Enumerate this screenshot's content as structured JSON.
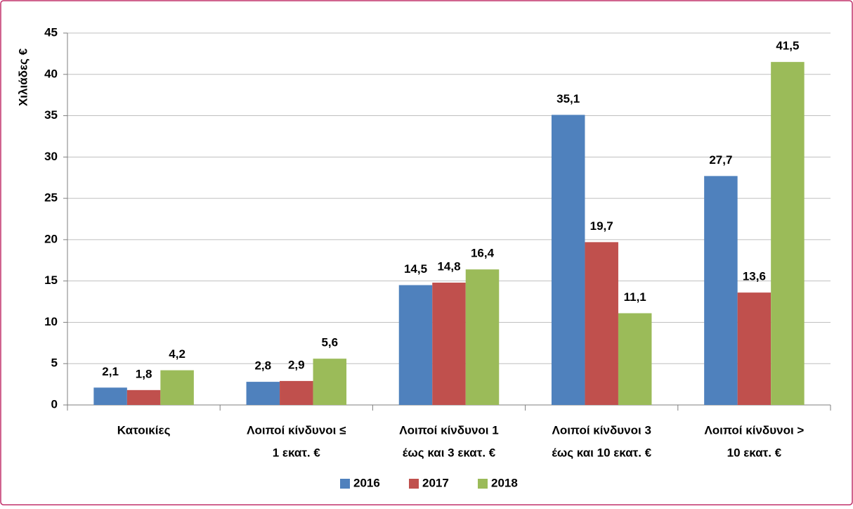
{
  "chart_data": {
    "type": "bar",
    "y_label": "Χιλιάδες €",
    "categories": [
      [
        "Κατοικίες"
      ],
      [
        "Λοιποί κίνδυνοι ≤",
        "1 εκατ. €"
      ],
      [
        "Λοιποί κίνδυνοι 1",
        "έως και 3 εκατ. €"
      ],
      [
        "Λοιποί κίνδυνοι 3",
        "έως και 10 εκατ. €"
      ],
      [
        "Λοιποί κίνδυνοι >",
        "10 εκατ. €"
      ]
    ],
    "series": [
      {
        "name": "2016",
        "color": "#4f81bd",
        "values": [
          2.1,
          2.8,
          14.5,
          35.1,
          27.7
        ],
        "value_labels": [
          "2,1",
          "2,8",
          "14,5",
          "35,1",
          "27,7"
        ]
      },
      {
        "name": "2017",
        "color": "#c0504d",
        "values": [
          1.8,
          2.9,
          14.8,
          19.7,
          13.6
        ],
        "value_labels": [
          "1,8",
          "2,9",
          "14,8",
          "19,7",
          "13,6"
        ]
      },
      {
        "name": "2018",
        "color": "#9bbb59",
        "values": [
          4.2,
          5.6,
          16.4,
          11.1,
          41.5
        ],
        "value_labels": [
          "4,2",
          "5,6",
          "16,4",
          "11,1",
          "41,5"
        ]
      }
    ],
    "ylim": [
      0,
      45
    ],
    "yticks": [
      0,
      5,
      10,
      15,
      20,
      25,
      30,
      35,
      40,
      45
    ],
    "grid": true,
    "legend": "bottom"
  }
}
